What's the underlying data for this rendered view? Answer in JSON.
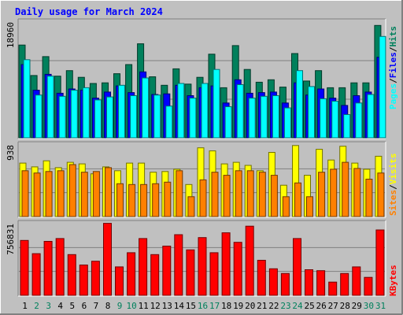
{
  "chart_data": {
    "type": "bar",
    "title": "Daily usage for March 2024",
    "categories": [
      "1",
      "2",
      "3",
      "4",
      "5",
      "6",
      "7",
      "8",
      "9",
      "10",
      "11",
      "12",
      "13",
      "14",
      "15",
      "16",
      "17",
      "18",
      "19",
      "20",
      "21",
      "22",
      "23",
      "24",
      "25",
      "26",
      "27",
      "28",
      "29",
      "30",
      "31"
    ],
    "weekend_days": [
      "2",
      "3",
      "9",
      "10",
      "16",
      "17",
      "23",
      "24",
      "30",
      "31"
    ],
    "panels": [
      {
        "id": "hits",
        "ymax_label": "18960",
        "ymax": 18960,
        "series": [
          {
            "name": "Hits",
            "color": "#00805c",
            "values": [
              15200,
              10200,
              13300,
              10100,
              11000,
              9900,
              8900,
              9000,
              10500,
              12000,
              15400,
              10000,
              8600,
              11300,
              8800,
              9900,
              13700,
              8200,
              15100,
              11200,
              9100,
              9500,
              8300,
              13800,
              9300,
              11000,
              8200,
              8200,
              9000,
              9000,
              18400
            ]
          },
          {
            "name": "Files",
            "color": "#0000ff",
            "values": [
              12000,
              7800,
              10400,
              7300,
              8000,
              7800,
              6500,
              7500,
              8500,
              7400,
              10800,
              7100,
              7200,
              8600,
              6900,
              8200,
              8500,
              5700,
              9500,
              7300,
              7400,
              7500,
              5700,
              9000,
              7000,
              8000,
              6500,
              5300,
              6900,
              7500,
              13200
            ]
          },
          {
            "name": "Pages",
            "color": "#00ffff",
            "values": [
              12800,
              7000,
              10100,
              6800,
              7800,
              8200,
              6200,
              6700,
              8600,
              6900,
              9800,
              7000,
              5200,
              8900,
              6500,
              8900,
              11200,
              5100,
              8700,
              6500,
              6800,
              6900,
              4900,
              11000,
              8400,
              6400,
              6000,
              3800,
              5700,
              7100,
              16600
            ]
          }
        ]
      },
      {
        "id": "visits",
        "ymax_label": "938",
        "ymax": 938,
        "series": [
          {
            "name": "Visits",
            "color": "#ffff00",
            "values": [
              700,
              650,
              730,
              640,
              710,
              690,
              560,
              650,
              600,
              700,
              700,
              580,
              590,
              620,
              420,
              900,
              860,
              690,
              710,
              670,
              600,
              840,
              410,
              930,
              540,
              880,
              740,
              920,
              700,
              620,
              790
            ]
          },
          {
            "name": "Sites",
            "color": "#ff8000",
            "values": [
              600,
              570,
              590,
              600,
              680,
              580,
              590,
              640,
              430,
              420,
              420,
              430,
              450,
              600,
              260,
              480,
              580,
              540,
              600,
              600,
              580,
              540,
              260,
              440,
              260,
              580,
              620,
              710,
              630,
              490,
              570
            ]
          }
        ]
      },
      {
        "id": "kbytes",
        "ymax_label": "756831",
        "ymax": 756831,
        "series": [
          {
            "name": "KBytes",
            "color": "#ff0000",
            "values": [
              580000,
              440000,
              570000,
              600000,
              430000,
              320000,
              360000,
              760000,
              300000,
              450000,
              600000,
              430000,
              520000,
              640000,
              480000,
              610000,
              450000,
              660000,
              560000,
              730000,
              370000,
              280000,
              230000,
              600000,
              270000,
              260000,
              140000,
              230000,
              300000,
              190000,
              690000
            ]
          }
        ]
      }
    ],
    "axis_labels": {
      "hits_panel": [
        "Pages",
        "/",
        "Files",
        "/",
        "Hits"
      ],
      "visits_panel": [
        "Sites",
        "/",
        "Visits"
      ],
      "kbytes_panel": [
        "KBytes"
      ]
    }
  }
}
